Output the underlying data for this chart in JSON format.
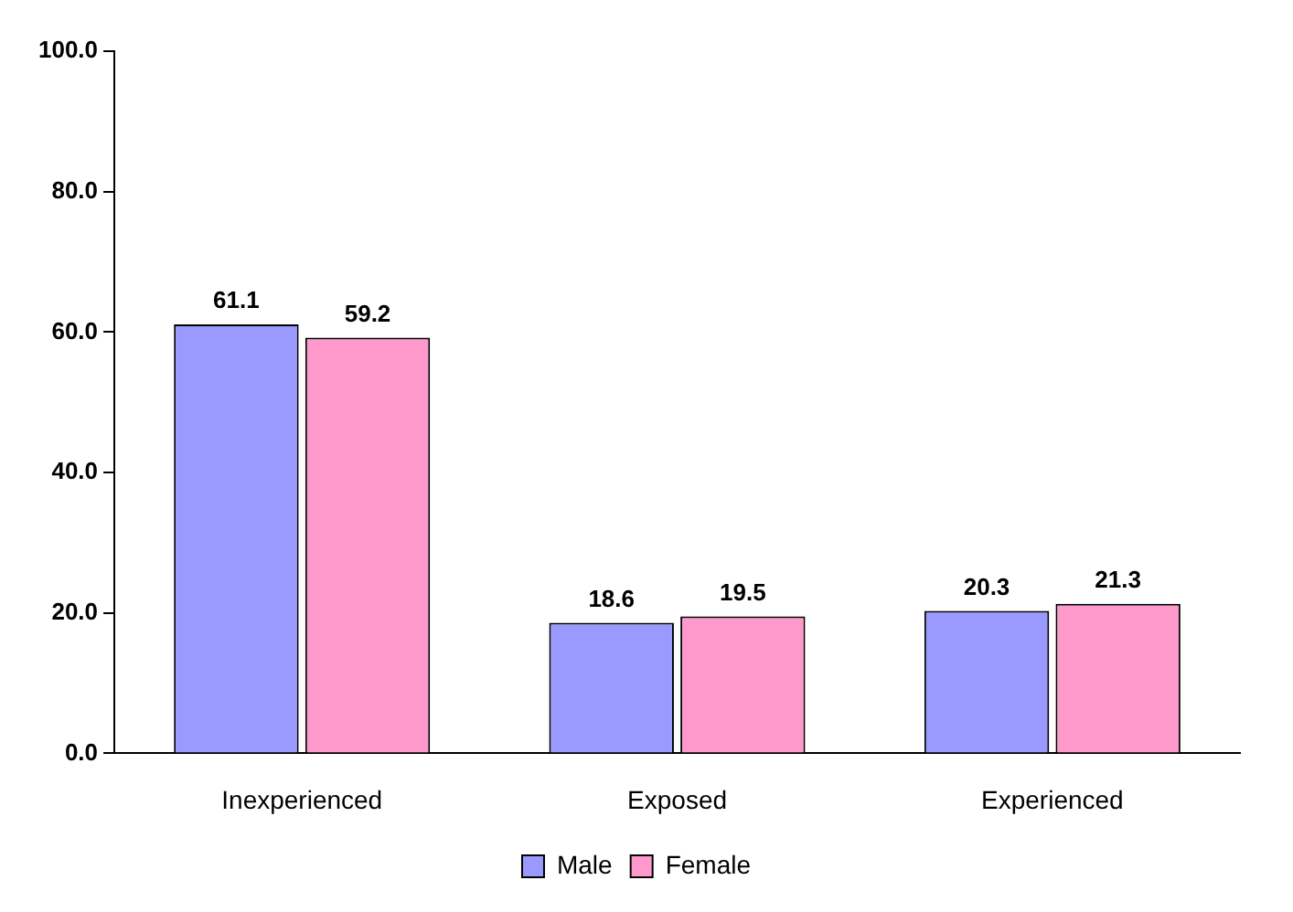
{
  "chart_data": {
    "type": "bar",
    "categories": [
      "Inexperienced",
      "Exposed",
      "Experienced"
    ],
    "series": [
      {
        "name": "Male",
        "color": "#9999ff",
        "values": [
          61.1,
          18.6,
          20.3
        ]
      },
      {
        "name": "Female",
        "color": "#ff99cc",
        "values": [
          59.2,
          19.5,
          21.3
        ]
      }
    ],
    "ylim": [
      0,
      100
    ],
    "yticks": [
      {
        "value": 0,
        "label": "0.0"
      },
      {
        "value": 20,
        "label": "20.0"
      },
      {
        "value": 40,
        "label": "40.0"
      },
      {
        "value": 60,
        "label": "60.0"
      },
      {
        "value": 80,
        "label": "80.0"
      },
      {
        "value": 100,
        "label": "100.0"
      }
    ],
    "grid": false,
    "legend": "bottom",
    "data_labels": true
  }
}
